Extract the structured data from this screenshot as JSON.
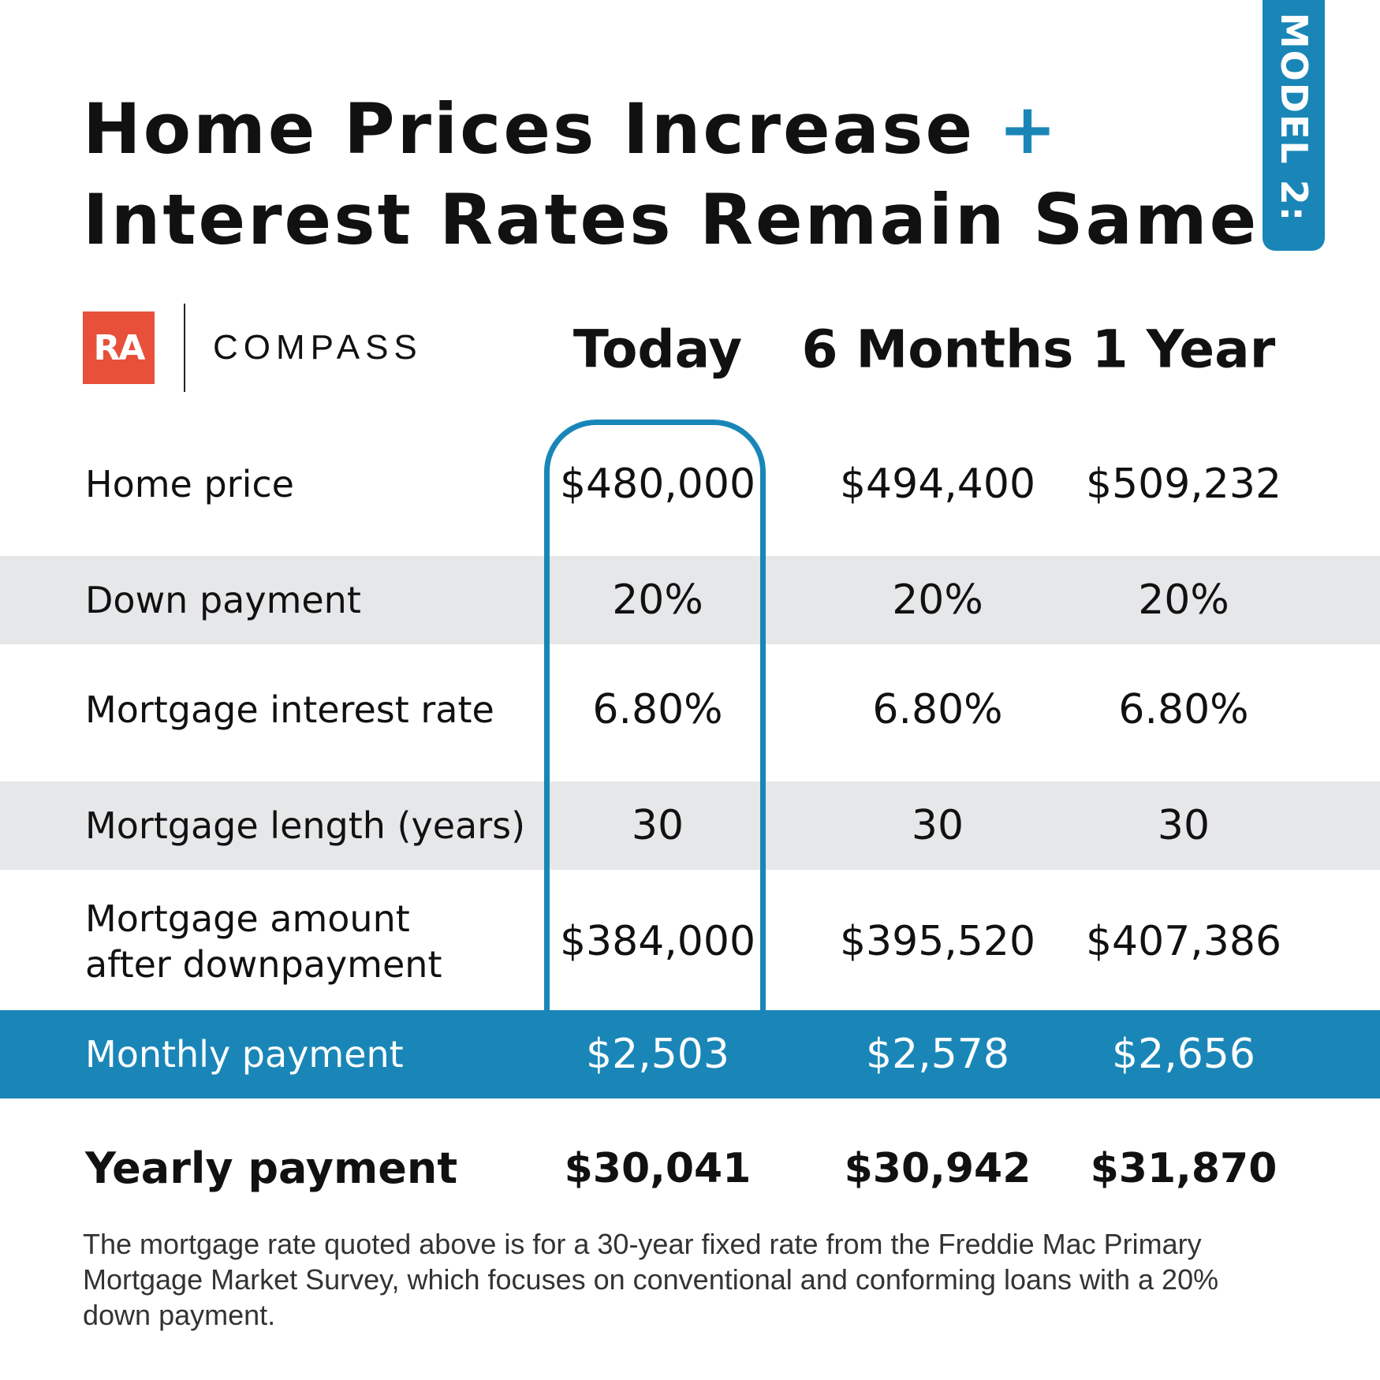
{
  "header": {
    "title_line1": "Home Prices Increase",
    "title_plus": "+",
    "title_line2": "Interest Rates Remain Same",
    "badge": "MODEL 2:"
  },
  "logo": {
    "initials": "RA",
    "brand": "COMPASS"
  },
  "table": {
    "columns": [
      "Today",
      "6 Months",
      "1 Year"
    ],
    "rows": [
      {
        "label": "Home price",
        "values": [
          "$480,000",
          "$494,400",
          "$509,232"
        ]
      },
      {
        "label": "Down payment",
        "values": [
          "20%",
          "20%",
          "20%"
        ]
      },
      {
        "label": "Mortgage interest rate",
        "values": [
          "6.80%",
          "6.80%",
          "6.80%"
        ]
      },
      {
        "label": "Mortgage length (years)",
        "values": [
          "30",
          "30",
          "30"
        ]
      },
      {
        "label": [
          "Mortgage amount",
          "after  downpayment"
        ],
        "values": [
          "$384,000",
          "$395,520",
          "$407,386"
        ]
      },
      {
        "label": "Monthly payment",
        "values": [
          "$2,503",
          "$2,578",
          "$2,656"
        ]
      },
      {
        "label": "Yearly payment",
        "values": [
          "$30,041",
          "$30,942",
          "$31,870"
        ]
      }
    ]
  },
  "footnote": "The mortgage rate quoted above is for a 30-year fixed rate from the Freddie Mac Primary Mortgage Market Survey, which focuses on conventional and conforming loans with a 20% down payment."
}
